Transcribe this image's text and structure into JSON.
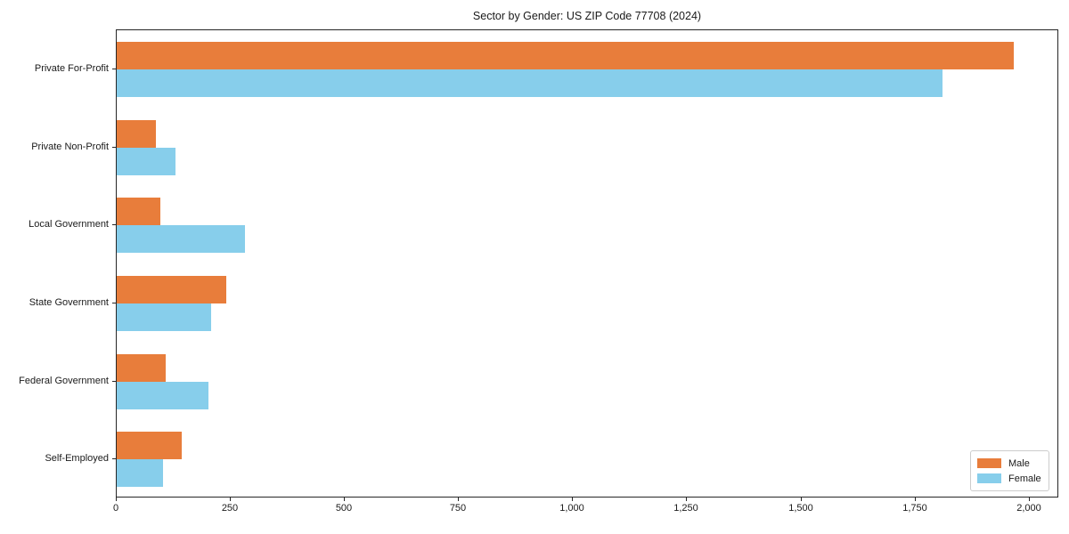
{
  "chart_data": {
    "type": "bar",
    "orientation": "horizontal",
    "title": "Sector by Gender: US ZIP Code 77708 (2024)",
    "categories": [
      "Private For-Profit",
      "Private Non-Profit",
      "Local Government",
      "State Government",
      "Federal Government",
      "Self-Employed"
    ],
    "series": [
      {
        "name": "Male",
        "color": "#e87d3b",
        "values": [
          1965,
          85,
          95,
          240,
          108,
          143
        ]
      },
      {
        "name": "Female",
        "color": "#87ceeb",
        "values": [
          1810,
          128,
          280,
          207,
          200,
          102
        ]
      }
    ],
    "xlabel": "",
    "ylabel": "",
    "xlim": [
      0,
      2065
    ],
    "xticks": [
      0,
      250,
      500,
      750,
      1000,
      1250,
      1500,
      1750,
      2000
    ],
    "xtick_labels": [
      "0",
      "250",
      "500",
      "750",
      "1,000",
      "1,250",
      "1,500",
      "1,750",
      "2,000"
    ],
    "grid": false,
    "legend": {
      "position": "lower-right",
      "entries": [
        "Male",
        "Female"
      ]
    },
    "colors": {
      "axis": "#262626",
      "background": "#ffffff"
    }
  }
}
